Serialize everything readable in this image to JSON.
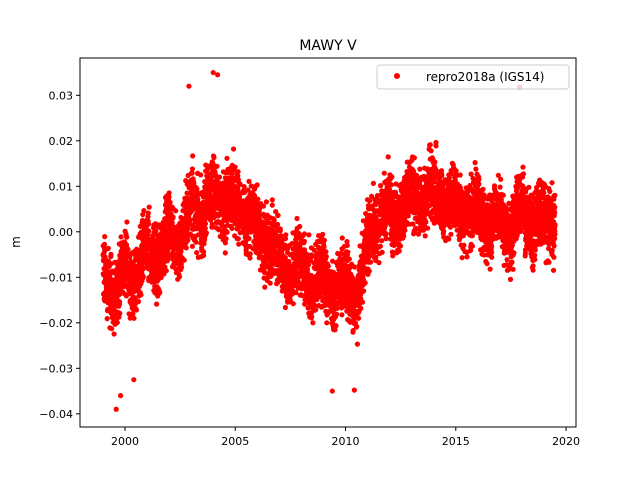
{
  "chart_data": {
    "type": "scatter",
    "title": "MAWY V",
    "xlabel": "",
    "ylabel": "m",
    "xlim": [
      1997.96,
      2020.45
    ],
    "ylim": [
      -0.0429,
      0.0382
    ],
    "xticks": [
      2000,
      2005,
      2010,
      2015,
      2020
    ],
    "xtick_labels": [
      "2000",
      "2005",
      "2010",
      "2015",
      "2020"
    ],
    "yticks": [
      -0.04,
      -0.03,
      -0.02,
      -0.01,
      0.0,
      0.01,
      0.02,
      0.03
    ],
    "ytick_labels": [
      "−0.04",
      "−0.03",
      "−0.02",
      "−0.01",
      "0.00",
      "0.01",
      "0.02",
      "0.03"
    ],
    "grid": false,
    "legend": {
      "placement": "top-right",
      "entries": [
        "repro2018a (IGS14)"
      ]
    },
    "series": [
      {
        "name": "repro2018a (IGS14)",
        "color": "#ff0000",
        "note_spread": 0.013,
        "x": [
          1999.0,
          1999.25,
          1999.5,
          1999.75,
          2000.0,
          2000.25,
          2000.5,
          2000.75,
          2001.0,
          2001.25,
          2001.5,
          2001.75,
          2002.0,
          2002.25,
          2002.5,
          2002.75,
          2003.0,
          2003.25,
          2003.5,
          2003.75,
          2004.0,
          2004.25,
          2004.5,
          2004.75,
          2005.0,
          2005.25,
          2005.5,
          2005.75,
          2006.0,
          2006.25,
          2006.5,
          2006.75,
          2007.0,
          2007.25,
          2007.5,
          2007.75,
          2008.0,
          2008.25,
          2008.5,
          2008.75,
          2009.0,
          2009.25,
          2009.5,
          2009.75,
          2010.0,
          2010.25,
          2010.5,
          2010.75,
          2011.0,
          2011.25,
          2011.5,
          2011.75,
          2012.0,
          2012.25,
          2012.5,
          2012.75,
          2013.0,
          2013.25,
          2013.5,
          2013.75,
          2014.0,
          2014.25,
          2014.5,
          2014.75,
          2015.0,
          2015.25,
          2015.5,
          2015.75,
          2016.0,
          2016.25,
          2016.5,
          2016.75,
          2017.0,
          2017.25,
          2017.5,
          2017.75,
          2018.0,
          2018.25,
          2018.5,
          2018.75,
          2019.0,
          2019.25
        ],
        "y_center": [
          -0.008,
          -0.012,
          -0.015,
          -0.01,
          -0.006,
          -0.01,
          -0.012,
          -0.006,
          -0.002,
          -0.006,
          -0.008,
          -0.002,
          0.002,
          -0.002,
          -0.004,
          0.003,
          0.007,
          0.004,
          0.002,
          0.008,
          0.01,
          0.006,
          0.004,
          0.008,
          0.008,
          0.004,
          0.002,
          0.004,
          0.002,
          -0.002,
          -0.004,
          -0.003,
          -0.004,
          -0.008,
          -0.012,
          -0.006,
          -0.006,
          -0.01,
          -0.014,
          -0.008,
          -0.008,
          -0.012,
          -0.016,
          -0.01,
          -0.01,
          -0.014,
          -0.016,
          -0.008,
          -0.001,
          0.0,
          0.002,
          0.004,
          0.006,
          0.002,
          0.003,
          0.007,
          0.01,
          0.006,
          0.005,
          0.01,
          0.011,
          0.007,
          0.005,
          0.008,
          0.007,
          0.004,
          0.002,
          0.005,
          0.006,
          0.002,
          0.0,
          0.004,
          0.004,
          0.0,
          -0.002,
          0.005,
          0.007,
          0.002,
          0.0,
          0.004,
          0.005,
          0.001
        ],
        "outliers": [
          [
            2004.0,
            0.035
          ],
          [
            2004.2,
            0.0345
          ],
          [
            2002.9,
            0.032
          ],
          [
            2017.9,
            0.0318
          ],
          [
            1999.6,
            -0.039
          ],
          [
            1999.8,
            -0.036
          ],
          [
            2009.4,
            -0.035
          ],
          [
            2010.4,
            -0.0348
          ],
          [
            2000.4,
            -0.0325
          ]
        ]
      }
    ]
  }
}
